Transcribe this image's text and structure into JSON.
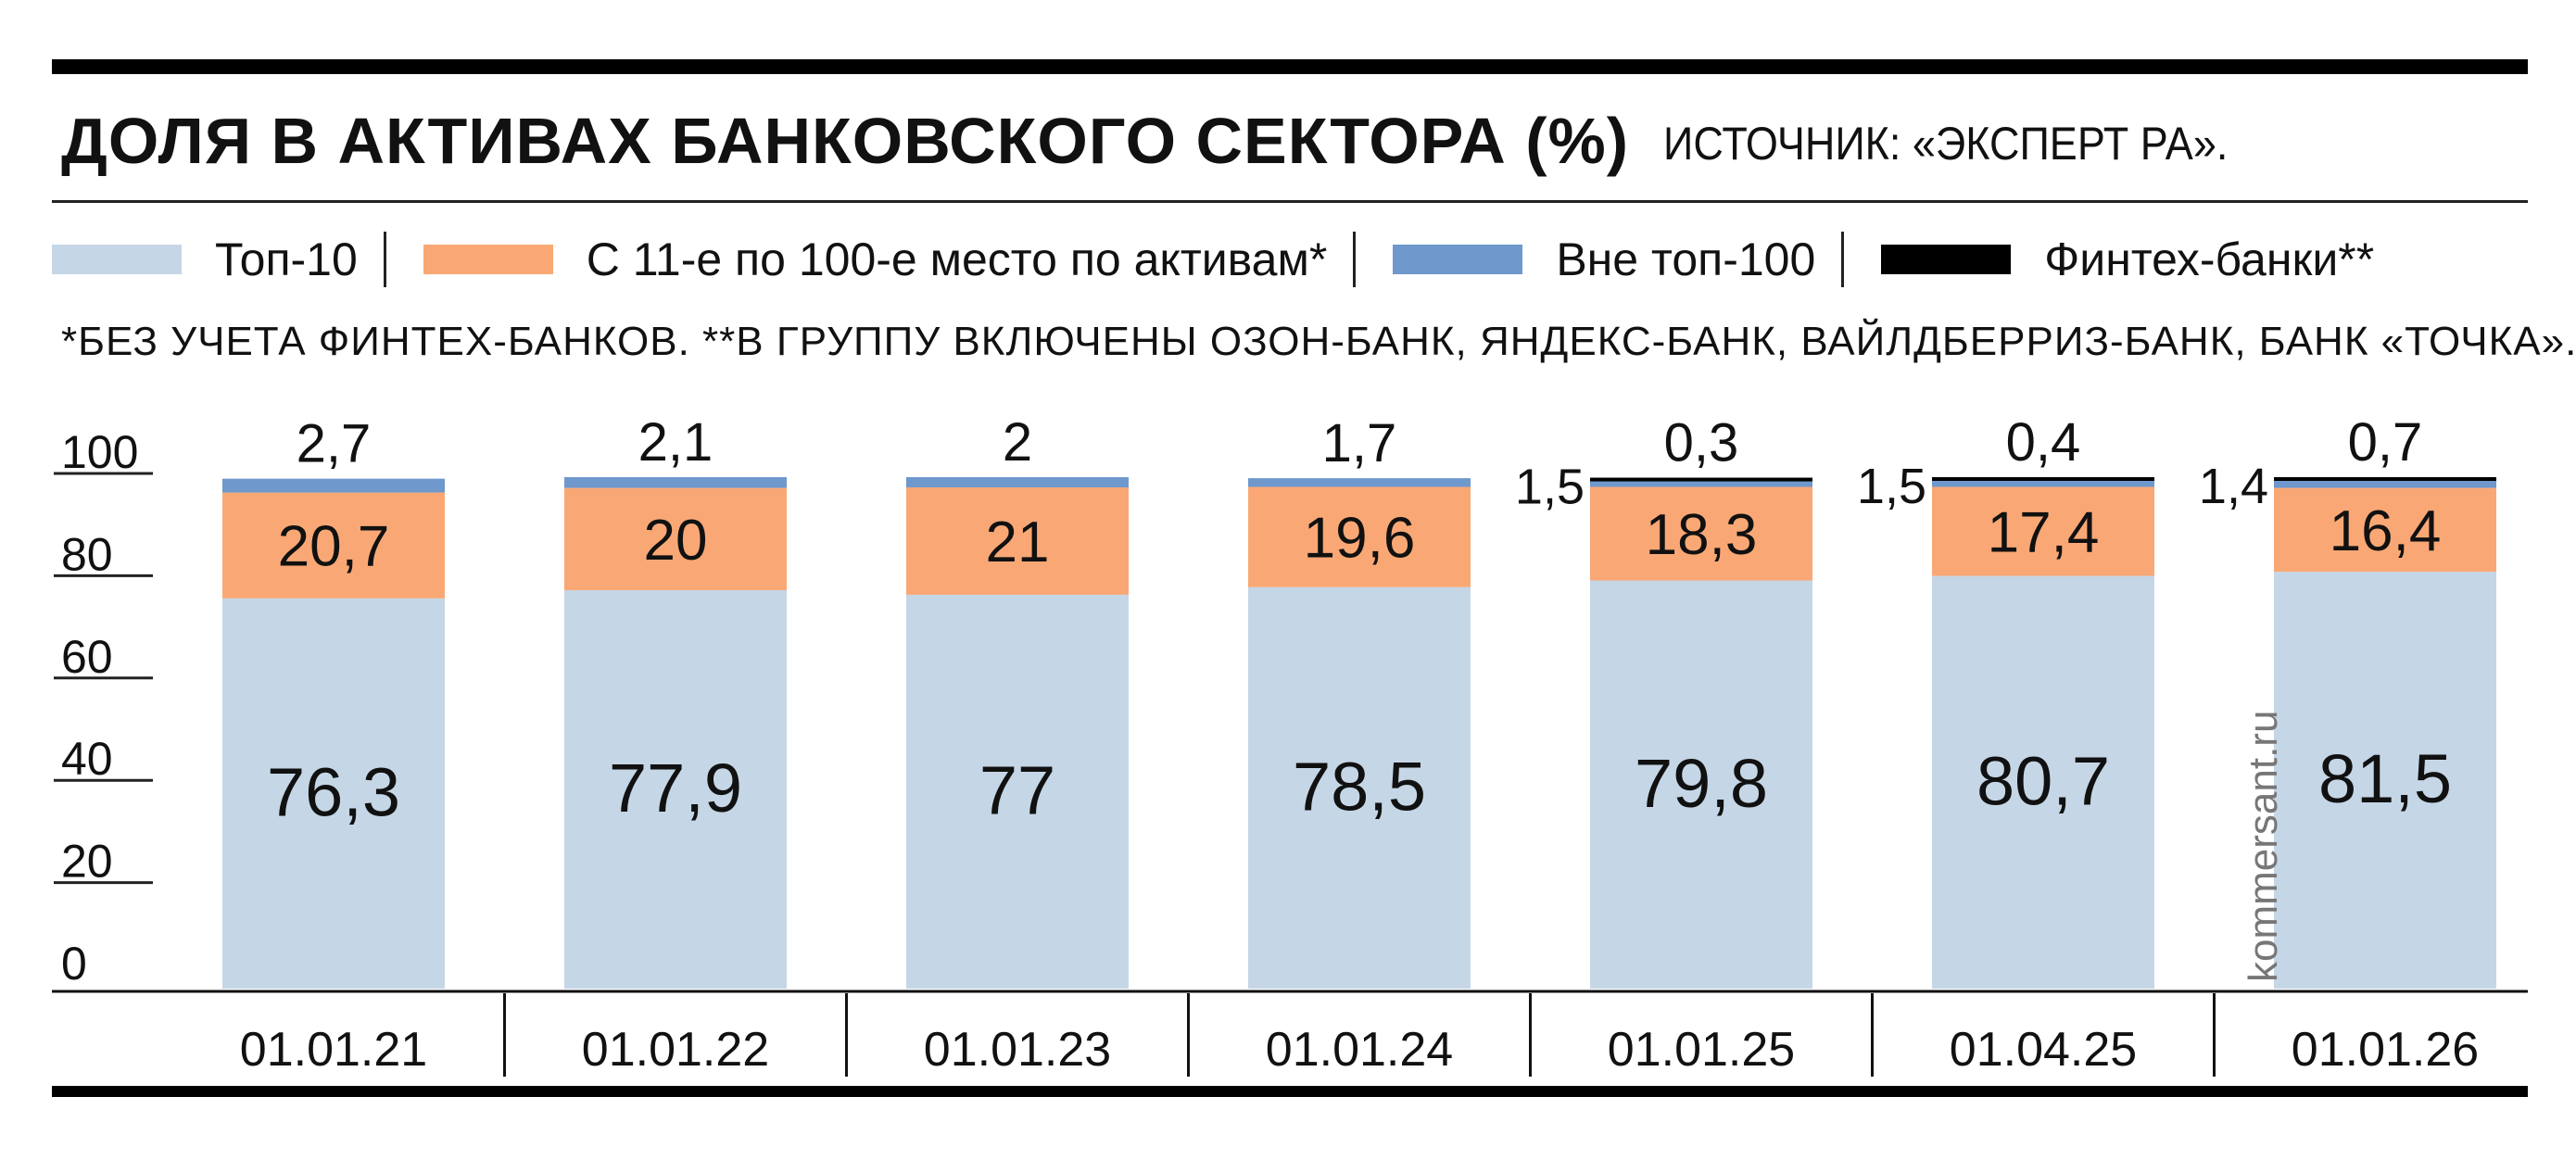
{
  "title": "ДОЛЯ В АКТИВАХ БАНКОВСКОГО СЕКТОРА (%)",
  "source": "ИСТОЧНИК: «ЭКСПЕРТ РА».",
  "note": "*БЕЗ УЧЕТА ФИНТЕХ-БАНКОВ.  **В ГРУППУ ВКЛЮЧЕНЫ ОЗОН-БАНК, ЯНДЕКС-БАНК, ВАЙЛДБЕРРИЗ-БАНК, БАНК «ТОЧКА».",
  "watermark": "kommersant.ru",
  "colors": {
    "top10": "#c5d6e6",
    "mid": "#f9a875",
    "outside": "#6f98cc",
    "fintech": "#000000"
  },
  "legend": [
    {
      "label": "Топ-10",
      "color": "#c5d6e6"
    },
    {
      "label": "С 11-е по 100-е место по активам*",
      "color": "#f9a875"
    },
    {
      "label": "Вне топ-100",
      "color": "#6f98cc"
    },
    {
      "label": "Финтех-банки**",
      "color": "#000000"
    }
  ],
  "chart_data": {
    "type": "bar",
    "stacked": true,
    "categories": [
      "01.01.21",
      "01.01.22",
      "01.01.23",
      "01.01.24",
      "01.01.25",
      "01.04.25",
      "01.01.26"
    ],
    "series": [
      {
        "name": "Топ-10",
        "values": [
          76.3,
          77.9,
          77,
          78.5,
          79.8,
          80.7,
          81.5
        ],
        "labels": [
          "76,3",
          "77,9",
          "77",
          "78,5",
          "79,8",
          "80,7",
          "81,5"
        ]
      },
      {
        "name": "С 11-е по 100-е место по активам*",
        "values": [
          20.7,
          20,
          21,
          19.6,
          18.3,
          17.4,
          16.4
        ],
        "labels": [
          "20,7",
          "20",
          "21",
          "19,6",
          "18,3",
          "17,4",
          "16,4"
        ]
      },
      {
        "name": "Вне топ-100",
        "values": [
          2.7,
          2.1,
          2,
          1.7,
          1.5,
          1.5,
          1.4
        ],
        "labels": [
          "2,7",
          "2,1",
          "2",
          "1,7",
          "1,5",
          "1,5",
          "1,4"
        ]
      },
      {
        "name": "Финтех-банки**",
        "values": [
          null,
          null,
          null,
          null,
          0.3,
          0.4,
          0.7
        ],
        "labels": [
          "",
          "",
          "",
          "",
          "0,3",
          "0,4",
          "0,7"
        ]
      }
    ],
    "yticks": [
      "0",
      "20",
      "40",
      "60",
      "80",
      "100"
    ],
    "ylim": [
      0,
      100
    ],
    "grid": false
  }
}
